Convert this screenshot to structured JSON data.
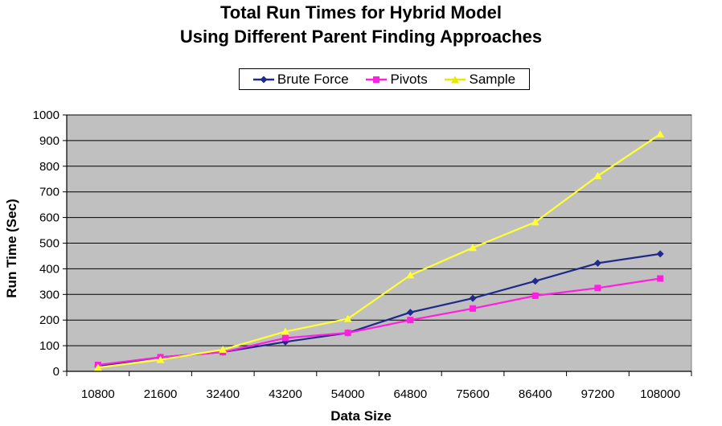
{
  "chart_data": {
    "type": "line",
    "title": "Total Run Times for Hybrid Model",
    "subtitle": "Using Different Parent Finding Approaches",
    "xlabel": "Data Size",
    "ylabel": "Run Time (Sec)",
    "categories": [
      "10800",
      "21600",
      "32400",
      "43200",
      "54000",
      "64800",
      "75600",
      "86400",
      "97200",
      "108000"
    ],
    "ylim": [
      0,
      1000
    ],
    "yticks": [
      "0",
      "100",
      "200",
      "300",
      "400",
      "500",
      "600",
      "700",
      "800",
      "900",
      "1000"
    ],
    "grid": true,
    "legend_position": "top",
    "series": [
      {
        "name": "Brute Force",
        "color": "#1f2a8a",
        "marker": "diamond",
        "values": [
          20,
          55,
          75,
          115,
          150,
          230,
          285,
          352,
          422,
          458
        ]
      },
      {
        "name": "Pivots",
        "color": "#ff1fe0",
        "marker": "square",
        "values": [
          25,
          55,
          75,
          130,
          150,
          200,
          245,
          295,
          325,
          362
        ]
      },
      {
        "name": "Sample",
        "color": "#ffff33",
        "marker": "triangle",
        "values": [
          15,
          45,
          85,
          155,
          205,
          375,
          482,
          582,
          762,
          925
        ]
      }
    ]
  }
}
